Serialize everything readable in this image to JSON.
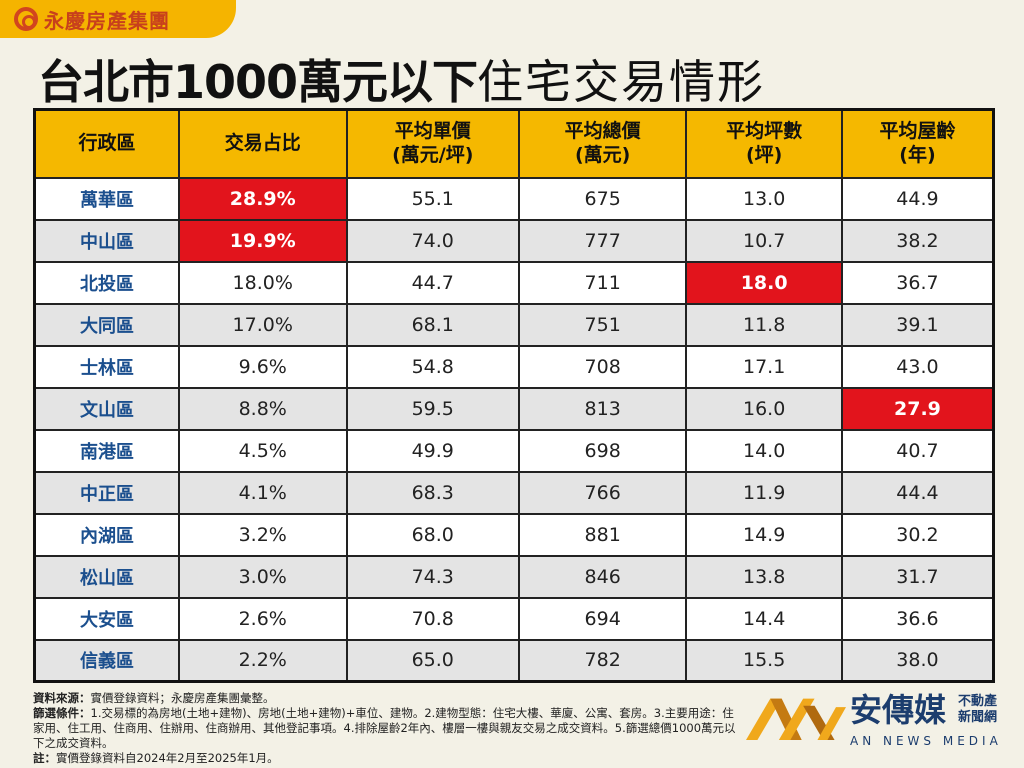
{
  "brand": {
    "name": "永慶房產集團",
    "color": "#f5b400"
  },
  "title": {
    "bold": "台北市1000萬元以下",
    "thin": "住宅交易情形"
  },
  "table": {
    "headers": [
      [
        "行政區"
      ],
      [
        "交易占比"
      ],
      [
        "平均單價",
        "(萬元/坪)"
      ],
      [
        "平均總價",
        "(萬元)"
      ],
      [
        "平均坪數",
        "(坪)"
      ],
      [
        "平均屋齡",
        "(年)"
      ]
    ],
    "rows": [
      [
        "萬華區",
        "28.9%",
        "55.1",
        "675",
        "13.0",
        "44.9"
      ],
      [
        "中山區",
        "19.9%",
        "74.0",
        "777",
        "10.7",
        "38.2"
      ],
      [
        "北投區",
        "18.0%",
        "44.7",
        "711",
        "18.0",
        "36.7"
      ],
      [
        "大同區",
        "17.0%",
        "68.1",
        "751",
        "11.8",
        "39.1"
      ],
      [
        "士林區",
        "9.6%",
        "54.8",
        "708",
        "17.1",
        "43.0"
      ],
      [
        "文山區",
        "8.8%",
        "59.5",
        "813",
        "16.0",
        "27.9"
      ],
      [
        "南港區",
        "4.5%",
        "49.9",
        "698",
        "14.0",
        "40.7"
      ],
      [
        "中正區",
        "4.1%",
        "68.3",
        "766",
        "11.9",
        "44.4"
      ],
      [
        "內湖區",
        "3.2%",
        "68.0",
        "881",
        "14.9",
        "30.2"
      ],
      [
        "松山區",
        "3.0%",
        "74.3",
        "846",
        "13.8",
        "31.7"
      ],
      [
        "大安區",
        "2.6%",
        "70.8",
        "694",
        "14.4",
        "36.6"
      ],
      [
        "信義區",
        "2.2%",
        "65.0",
        "782",
        "15.5",
        "38.0"
      ]
    ],
    "highlights": [
      [
        0,
        1
      ],
      [
        1,
        1
      ],
      [
        2,
        4
      ],
      [
        5,
        5
      ]
    ],
    "highlight_color": "#e2141c",
    "header_color": "#f5b800"
  },
  "notes": {
    "source_label": "資料來源：",
    "source": "實價登錄資料；永慶房產集團彙整。",
    "filter_label": "篩選條件：",
    "filter": "1.交易標的為房地(土地+建物)、房地(土地+建物)+車位、建物。2.建物型態：住宅大樓、華廈、公寓、套房。3.主要用途：住家用、住工用、住商用、住辦用、住商辦用、其他登記事項。4.排除屋齡2年內、樓層一樓與親友交易之成交資料。5.篩選總價1000萬元以下之成交資料。",
    "note_label": "註：",
    "note": "實價登錄資料自2024年2月至2025年1月。"
  },
  "watermark": {
    "name": "安傳媒",
    "sub": "不動產新聞網",
    "en": "AN NEWS MEDIA"
  }
}
